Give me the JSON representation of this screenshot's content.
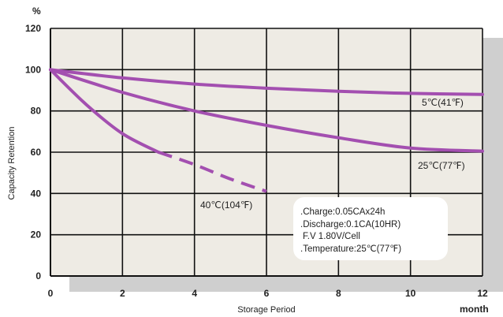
{
  "chart_data": {
    "type": "line",
    "title": "",
    "xlabel": "Storage Period",
    "ylabel": "Capacity Retention",
    "x_unit": "month",
    "y_unit": "%",
    "xlim": [
      0,
      12
    ],
    "ylim": [
      0,
      120
    ],
    "x_ticks": [
      "0",
      "2",
      "4",
      "6",
      "8",
      "10",
      "12"
    ],
    "y_ticks": [
      "0",
      "20",
      "40",
      "60",
      "80",
      "100",
      "120"
    ],
    "grid": true,
    "colors": {
      "series": "#a34fb0",
      "plot_bg": "#eeebe4",
      "shadow": "#cfcfcf"
    },
    "series": [
      {
        "name": "5℃(41℉)",
        "x": [
          0,
          2,
          4,
          6,
          8,
          10,
          12
        ],
        "y": [
          100,
          96,
          93,
          91,
          89.5,
          88.5,
          88
        ],
        "dashed_from_x": null
      },
      {
        "name": "25℃(77℉)",
        "x": [
          0,
          2,
          4,
          6,
          8,
          10,
          12
        ],
        "y": [
          100,
          89,
          80,
          73,
          67,
          62,
          60.5
        ],
        "dashed_from_x": null
      },
      {
        "name": "40℃(104℉)",
        "x": [
          0,
          1,
          2,
          3,
          4,
          5,
          6
        ],
        "y": [
          100,
          83,
          69,
          60,
          54,
          47,
          41
        ],
        "dashed_from_x": 3.5
      }
    ],
    "notes": [
      ".Charge:0.05CAx24h",
      ".Discharge:0.1CA(10HR)",
      "F.V 1.80V/Cell",
      ".Temperature:25℃(77℉)"
    ]
  }
}
